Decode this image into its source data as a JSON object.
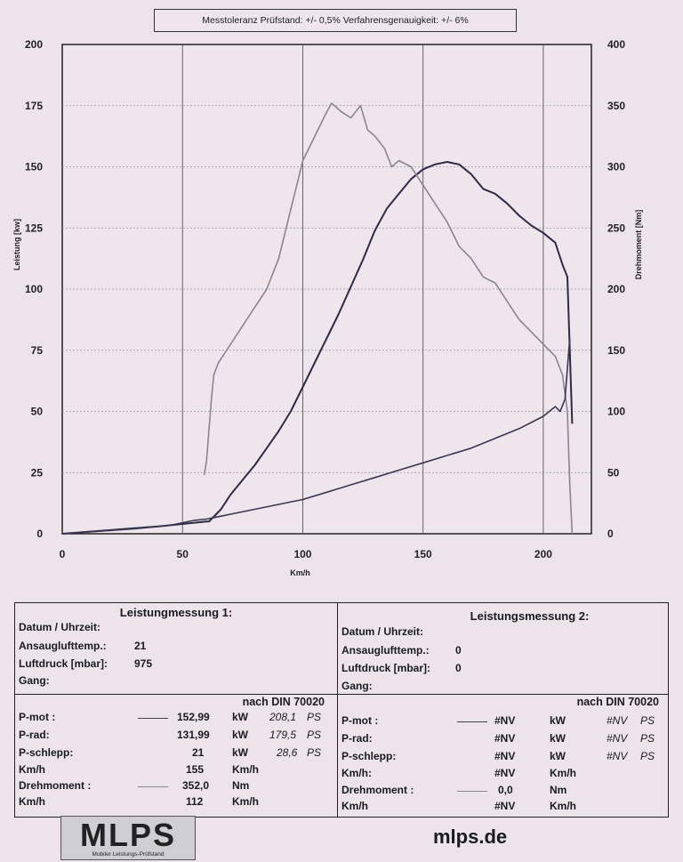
{
  "note": "Messtoleranz Prüfstand: +/- 0,5% Verfahrensgenauigkeit: +/- 6%",
  "chart_data": {
    "type": "line",
    "xlabel": "Km/h",
    "ylabel_left": "Leistung [kw]",
    "ylabel_right": "Drehmoment [Nm]",
    "xlim": [
      0,
      220
    ],
    "ylim_left": [
      0,
      200
    ],
    "ylim_right": [
      0,
      400
    ],
    "x_ticks": [
      "0",
      "50",
      "100",
      "150",
      "200"
    ],
    "y_left_ticks": [
      "0",
      "25",
      "50",
      "75",
      "100",
      "125",
      "150",
      "175",
      "200"
    ],
    "y_right_ticks": [
      "0",
      "50",
      "100",
      "150",
      "200",
      "250",
      "300",
      "350",
      "400"
    ],
    "grid": true,
    "series": [
      {
        "axis": "left",
        "color": "#2d2b45",
        "x": [
          0,
          20,
          40,
          50,
          60,
          61,
          62,
          64,
          66,
          70,
          75,
          80,
          85,
          90,
          95,
          100,
          105,
          110,
          115,
          120,
          125,
          130,
          135,
          140,
          145,
          150,
          155,
          160,
          165,
          170,
          175,
          180,
          185,
          190,
          195,
          200,
          205,
          208,
          210,
          212
        ],
        "y": [
          0,
          1.5,
          3,
          4,
          5,
          5,
          6,
          8,
          10,
          16,
          22,
          28,
          35,
          42,
          50,
          60,
          70,
          80,
          90,
          101,
          112,
          124,
          133,
          139,
          145,
          149,
          151,
          152,
          151,
          147,
          141,
          139,
          135,
          130,
          126,
          123,
          119,
          110,
          105,
          45
        ]
      },
      {
        "axis": "right",
        "color": "#8b8593",
        "x": [
          59,
          60,
          61,
          62,
          63,
          65,
          70,
          75,
          80,
          85,
          90,
          95,
          100,
          105,
          110,
          112,
          116,
          120,
          124,
          127,
          130,
          134,
          137,
          140,
          145,
          150,
          155,
          160,
          165,
          170,
          175,
          180,
          185,
          190,
          195,
          200,
          205,
          208,
          210,
          211,
          212
        ],
        "y": [
          48,
          60,
          85,
          110,
          130,
          140,
          155,
          170,
          185,
          200,
          225,
          265,
          305,
          325,
          345,
          352,
          345,
          340,
          350,
          330,
          325,
          315,
          300,
          305,
          300,
          285,
          270,
          255,
          235,
          225,
          210,
          205,
          190,
          175,
          165,
          155,
          145,
          130,
          100,
          40,
          0
        ]
      },
      {
        "axis": "left",
        "color": "#3a3750",
        "x": [
          0,
          30,
          45,
          50,
          55,
          60,
          65,
          70,
          80,
          90,
          100,
          110,
          120,
          130,
          140,
          150,
          160,
          170,
          180,
          190,
          200,
          205,
          207,
          209,
          211
        ],
        "y": [
          0,
          2,
          3.5,
          4.5,
          5.5,
          6,
          7,
          8,
          10,
          12,
          14,
          17,
          20,
          23,
          26,
          29,
          32,
          35,
          39,
          43,
          48,
          52,
          50,
          55,
          80
        ]
      }
    ]
  },
  "table1": {
    "title": "Leistungmessung 1:",
    "datum": "Datum / Uhrzeit:",
    "ansaug_label": "Ansauglufttemp.:",
    "ansaug_value": "21",
    "luftdruck_label": "Luftdruck [mbar]:",
    "luftdruck_value": "975",
    "gang": "Gang:",
    "din": "nach DIN 70020",
    "pmot_label": "P-mot :",
    "pmot_kw": "152,99",
    "pmot_ps": "208,1",
    "prad_label": "P-rad:",
    "prad_kw": "131,99",
    "prad_ps": "179,5",
    "pschlepp_label": "P-schlepp:",
    "pschlepp_kw": "21",
    "pschlepp_ps": "28,6",
    "kmh1_label": "Km/h",
    "kmh1_value": "155",
    "dreh_label": "Drehmoment :",
    "dreh_value": "352,0",
    "kmh2_label": "Km/h",
    "kmh2_value": "112",
    "unit_kw": "kW",
    "unit_ps": "PS",
    "unit_kmh": "Km/h",
    "unit_nm": "Nm"
  },
  "table2": {
    "title": "Leistungsmessung 2:",
    "datum": "Datum / Uhrzeit:",
    "ansaug_label": "Ansauglufttemp.:",
    "ansaug_value": "0",
    "luftdruck_label": "Luftdruck [mbar]:",
    "luftdruck_value": "0",
    "gang": "Gang:",
    "din": "nach DIN 70020",
    "pmot_label": "P-mot :",
    "prad_label": "P-rad:",
    "pschlepp_label": "P-schlepp:",
    "kmh1_label": "Km/h:",
    "dreh_label": "Drehmoment :",
    "dreh_value": "0,0",
    "kmh2_label": "Km/h",
    "nv": "#NV",
    "unit_kw": "kW",
    "unit_ps": "PS",
    "unit_kmh": "Km/h",
    "unit_nm": "Nm"
  },
  "logo": {
    "text": "MLPS",
    "sub": "Mobiler Leistungs-Prüfstand"
  },
  "website": "mlps.de"
}
